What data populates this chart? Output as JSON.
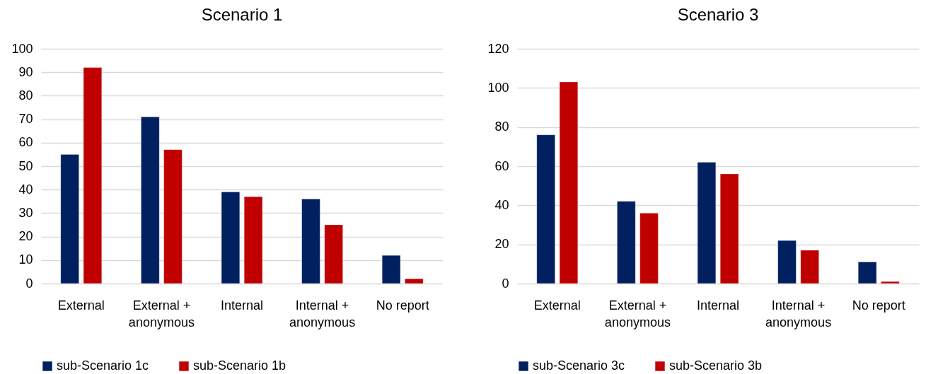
{
  "chart_data": [
    {
      "type": "bar",
      "title": "Scenario 1",
      "categories": [
        "External",
        "External + anonymous",
        "Internal",
        "Internal + anonymous",
        "No report"
      ],
      "series": [
        {
          "name": "sub-Scenario 1c",
          "color": "#002060",
          "values": [
            55,
            71,
            39,
            36,
            12
          ]
        },
        {
          "name": "sub-Scenario 1b",
          "color": "#c00000",
          "values": [
            92,
            57,
            37,
            25,
            2
          ]
        }
      ],
      "ylim": [
        0,
        100
      ],
      "yticks": [
        0,
        10,
        20,
        30,
        40,
        50,
        60,
        70,
        80,
        90,
        100
      ],
      "grid": "y",
      "legend": "bottom"
    },
    {
      "type": "bar",
      "title": "Scenario 3",
      "categories": [
        "External",
        "External + anonymous",
        "Internal",
        "Internal + anonymous",
        "No report"
      ],
      "series": [
        {
          "name": "sub-Scenario 3c",
          "color": "#002060",
          "values": [
            76,
            42,
            62,
            22,
            11
          ]
        },
        {
          "name": "sub-Scenario 3b",
          "color": "#c00000",
          "values": [
            103,
            36,
            56,
            17,
            1
          ]
        }
      ],
      "ylim": [
        0,
        120
      ],
      "yticks": [
        0,
        20,
        40,
        60,
        80,
        100,
        120
      ],
      "grid": "y",
      "legend": "bottom"
    }
  ]
}
